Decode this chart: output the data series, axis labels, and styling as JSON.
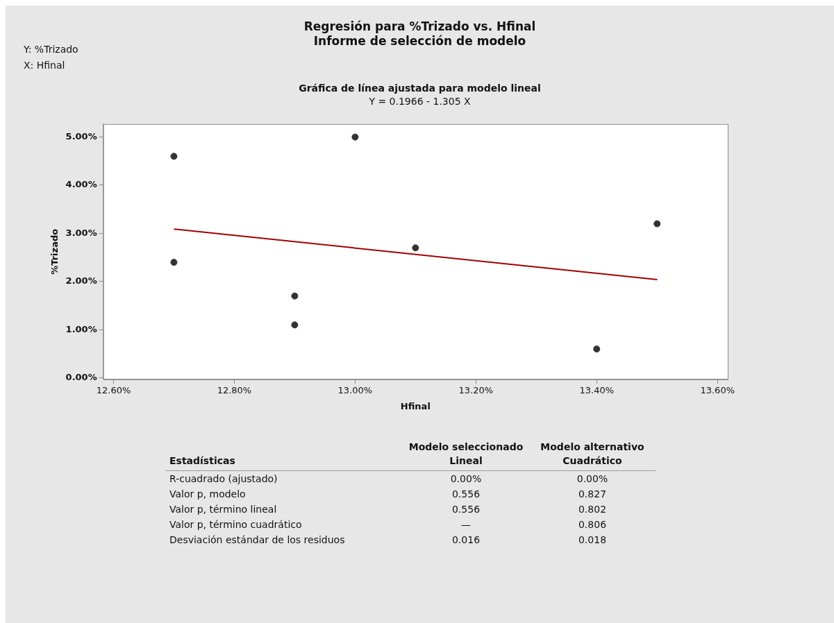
{
  "chart_data": {
    "type": "scatter",
    "title": "Regresión para %Trizado vs. Hfinal",
    "subtitle": "Informe de selección de modelo",
    "xlabel": "Hfinal",
    "ylabel": "%Trizado",
    "series": [
      {
        "color": "#333333",
        "marker": "circle",
        "x": [
          12.7,
          12.7,
          12.9,
          12.9,
          13.0,
          13.1,
          13.4,
          13.5
        ],
        "values": [
          4.6,
          2.4,
          1.7,
          1.1,
          5.0,
          2.7,
          0.6,
          3.2
        ]
      },
      {
        "type": "line",
        "marker": "none",
        "color": "#a00000",
        "x": [
          12.7,
          13.5
        ],
        "values": [
          3.09,
          2.04
        ]
      }
    ],
    "xlim": [
      12.583,
      13.617
    ],
    "xticks": [
      {
        "value": 12.6,
        "label": "12.60%"
      },
      {
        "value": 12.8,
        "label": "12.80%"
      },
      {
        "value": 13.0,
        "label": "13.00%"
      },
      {
        "value": 13.2,
        "label": "13.20%"
      },
      {
        "value": 13.4,
        "label": "13.40%"
      },
      {
        "value": 13.6,
        "label": "13.60%"
      }
    ],
    "ylim": [
      -0.03,
      5.27
    ],
    "yticks": [
      {
        "value": 0,
        "label": "0.00%"
      },
      {
        "value": 1,
        "label": "1.00%"
      },
      {
        "value": 2,
        "label": "2.00%"
      },
      {
        "value": 3,
        "label": "3.00%"
      },
      {
        "value": 4,
        "label": "4.00%"
      },
      {
        "value": 5,
        "label": "5.00%"
      }
    ],
    "grid": false,
    "legend": false,
    "annotations": [
      "Y: %Trizado",
      "X: Hfinal",
      "Gráfica de línea ajustada para modelo lineal",
      "Y = 0.1966 - 1.305 X",
      "Estadísticas",
      "Modelo seleccionado\nLineal",
      "Modelo alternativo\nCuadrático",
      "R-cuadrado (ajustado)",
      "0.00%",
      "0.00%",
      "Valor p, modelo",
      "0.556",
      "0.827",
      "Valor p, término lineal",
      "0.556",
      "0.802",
      "Valor p, término cuadrático",
      "—",
      "0.806",
      "Desviación estándar de los residuos",
      "0.016",
      "0.018"
    ]
  }
}
